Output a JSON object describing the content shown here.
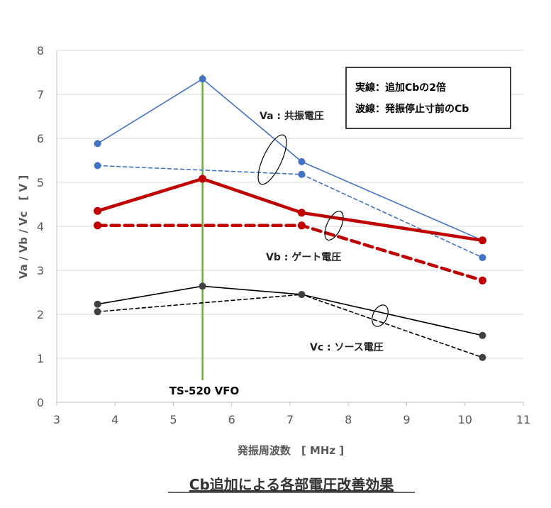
{
  "chart_data": {
    "type": "line",
    "title": "",
    "xlabel": "発振周波数　[ MHz ]",
    "ylabel": "Va / Vb / Vc　[ V ]",
    "xlim": [
      3,
      11
    ],
    "ylim": [
      0,
      8
    ],
    "x_ticks": [
      "3",
      "4",
      "5",
      "6",
      "7",
      "8",
      "9",
      "10",
      "11"
    ],
    "y_ticks": [
      "0",
      "1",
      "2",
      "3",
      "4",
      "5",
      "6",
      "7",
      "8"
    ],
    "grid": "horizontal",
    "x": [
      3.7,
      5.5,
      7.2,
      10.3
    ],
    "series": [
      {
        "name": "Va 実線",
        "style": "solid",
        "color": "#4472C4",
        "width": 1.6,
        "values": [
          5.88,
          7.35,
          5.47,
          3.68
        ]
      },
      {
        "name": "Va 波線",
        "style": "dashed",
        "color": "#4472C4",
        "width": 1.6,
        "values": [
          5.38,
          null,
          5.18,
          3.29
        ]
      },
      {
        "name": "Vb 実線",
        "style": "solid",
        "color": "#C00000",
        "width": 4.5,
        "values": [
          4.35,
          5.08,
          4.31,
          3.68
        ]
      },
      {
        "name": "Vb 波線",
        "style": "dashed",
        "color": "#C00000",
        "width": 4.5,
        "values": [
          4.02,
          null,
          4.02,
          2.77
        ]
      },
      {
        "name": "Vc 実線",
        "style": "solid",
        "color": "#000000",
        "width": 1.6,
        "marker": "#404040",
        "values": [
          2.23,
          2.64,
          2.45,
          1.52
        ]
      },
      {
        "name": "Vc 波線",
        "style": "dashed",
        "color": "#000000",
        "width": 1.6,
        "marker": "#404040",
        "values": [
          2.06,
          null,
          2.45,
          1.02
        ]
      }
    ],
    "vertical_line": {
      "x": 5.5,
      "label": "TS-520 VFO",
      "color": "#70AD47"
    },
    "annotations": {
      "va": "Va : 共振電圧",
      "vb": "Vb : ゲート電圧",
      "vc": "Vc : ソース電圧"
    },
    "legend_box": {
      "line1": "実線：追加Cbの2倍",
      "line2": "波線：発振停止寸前のCb",
      "placement": "top-right"
    }
  },
  "caption": "Cb追加による各部電圧改善効果"
}
